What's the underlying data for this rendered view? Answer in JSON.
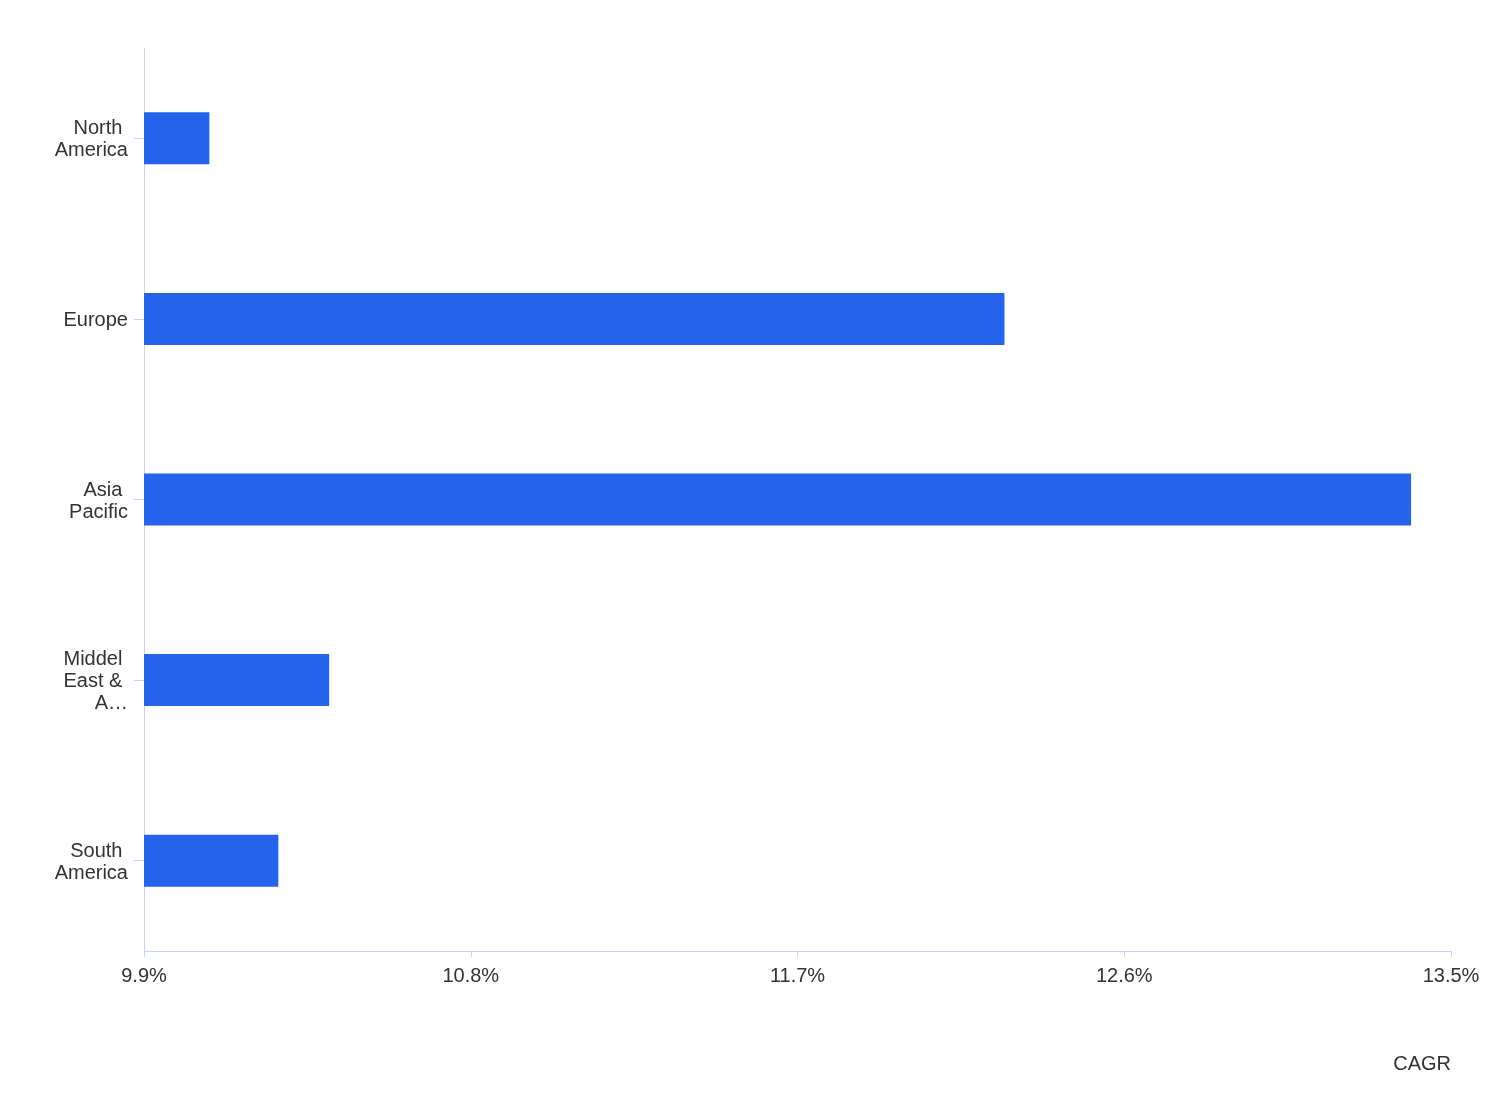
{
  "chart_data": {
    "type": "bar",
    "orientation": "horizontal",
    "xlabel": "CAGR",
    "categories": [
      "North America",
      "Europe",
      "Asia Pacific",
      "Middel East & A…",
      "South America"
    ],
    "values": [
      10.08,
      12.27,
      13.39,
      10.41,
      10.27
    ],
    "color": "#2563eb",
    "xlim": [
      9.9,
      13.5
    ],
    "xticks": [
      {
        "value": 9.9,
        "label": "9.9%"
      },
      {
        "value": 10.8,
        "label": "10.8%"
      },
      {
        "value": 11.7,
        "label": "11.7%"
      },
      {
        "value": 12.6,
        "label": "12.6%"
      },
      {
        "value": 13.5,
        "label": "13.5%"
      }
    ],
    "grid": false
  }
}
